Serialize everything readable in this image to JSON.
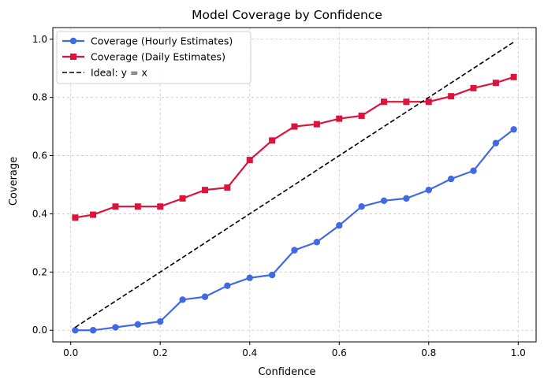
{
  "chart_data": {
    "type": "line",
    "title": "Model Coverage by Confidence",
    "xlabel": "Confidence",
    "ylabel": "Coverage",
    "xlim": [
      -0.04,
      1.04
    ],
    "ylim": [
      -0.04,
      1.04
    ],
    "xticks": [
      0.0,
      0.2,
      0.4,
      0.6,
      0.8,
      1.0
    ],
    "yticks": [
      0.0,
      0.2,
      0.4,
      0.6,
      0.8,
      1.0
    ],
    "xtick_labels": [
      "0.0",
      "0.2",
      "0.4",
      "0.6",
      "0.8",
      "1.0"
    ],
    "ytick_labels": [
      "0.0",
      "0.2",
      "0.4",
      "0.6",
      "0.8",
      "1.0"
    ],
    "grid": true,
    "legend_position": "top-left",
    "x": [
      0.01,
      0.05,
      0.1,
      0.15,
      0.2,
      0.25,
      0.3,
      0.35,
      0.4,
      0.45,
      0.5,
      0.55,
      0.6,
      0.65,
      0.7,
      0.75,
      0.8,
      0.85,
      0.9,
      0.95,
      0.99
    ],
    "series": [
      {
        "name": "Coverage (Hourly Estimates)",
        "color": "#4169e1",
        "marker": "circle",
        "values": [
          0.0,
          0.0,
          0.01,
          0.02,
          0.03,
          0.105,
          0.115,
          0.153,
          0.18,
          0.19,
          0.275,
          0.303,
          0.36,
          0.425,
          0.445,
          0.453,
          0.482,
          0.52,
          0.548,
          0.643,
          0.69
        ]
      },
      {
        "name": "Coverage (Daily Estimates)",
        "color": "#dc143c",
        "marker": "square",
        "values": [
          0.387,
          0.397,
          0.425,
          0.425,
          0.425,
          0.453,
          0.482,
          0.49,
          0.585,
          0.652,
          0.7,
          0.708,
          0.727,
          0.737,
          0.785,
          0.785,
          0.785,
          0.804,
          0.832,
          0.85,
          0.87
        ]
      },
      {
        "name": "Ideal: y = x",
        "color": "#000000",
        "style": "dashed",
        "x": [
          0.01,
          0.99
        ],
        "values": [
          0.01,
          0.99
        ]
      }
    ]
  }
}
